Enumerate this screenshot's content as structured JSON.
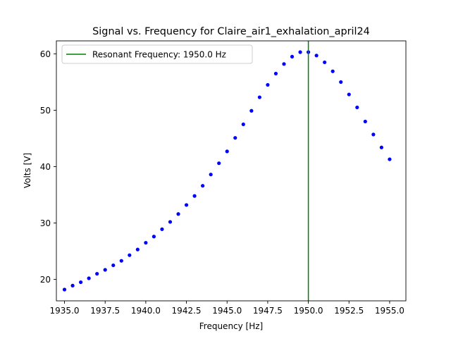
{
  "chart_data": {
    "type": "scatter",
    "title": "Signal vs. Frequency for Claire_air1_exhalation_april24",
    "xlabel": "Frequency [Hz]",
    "ylabel": "Volts [V]",
    "xlim": [
      1934.5,
      1956.0
    ],
    "ylim": [
      16.2,
      62.3
    ],
    "xticks": [
      1935.0,
      1937.5,
      1940.0,
      1942.5,
      1945.0,
      1947.5,
      1950.0,
      1952.5,
      1955.0
    ],
    "xtick_labels": [
      "1935.0",
      "1937.5",
      "1940.0",
      "1942.5",
      "1945.0",
      "1947.5",
      "1950.0",
      "1952.5",
      "1955.0"
    ],
    "yticks": [
      20,
      30,
      40,
      50,
      60
    ],
    "ytick_labels": [
      "20",
      "30",
      "40",
      "50",
      "60"
    ],
    "grid": false,
    "legend_position": "top-left",
    "series": [
      {
        "color": "#0000ff",
        "x": [
          1935.0,
          1935.5,
          1936.0,
          1936.5,
          1937.0,
          1937.5,
          1938.0,
          1938.5,
          1939.0,
          1939.5,
          1940.0,
          1940.5,
          1941.0,
          1941.5,
          1942.0,
          1942.5,
          1943.0,
          1943.5,
          1944.0,
          1944.5,
          1945.0,
          1945.5,
          1946.0,
          1946.5,
          1947.0,
          1947.5,
          1948.0,
          1948.5,
          1949.0,
          1949.5,
          1950.0,
          1950.5,
          1951.0,
          1951.5,
          1952.0,
          1952.5,
          1953.0,
          1953.5,
          1954.0,
          1954.5,
          1955.0
        ],
        "y": [
          18.2,
          18.9,
          19.5,
          20.2,
          21.0,
          21.7,
          22.5,
          23.3,
          24.3,
          25.3,
          26.5,
          27.6,
          28.9,
          30.2,
          31.6,
          33.2,
          34.8,
          36.6,
          38.6,
          40.6,
          42.7,
          45.1,
          47.5,
          49.9,
          52.3,
          54.5,
          56.5,
          58.2,
          59.5,
          60.3,
          60.3,
          59.7,
          58.5,
          56.9,
          55.0,
          52.8,
          50.5,
          48.0,
          45.7,
          43.4,
          41.3
        ]
      }
    ],
    "vlines": [
      {
        "name": "Resonant Frequency: 1950.0 Hz",
        "x": 1950.0,
        "color": "#008000"
      }
    ]
  }
}
